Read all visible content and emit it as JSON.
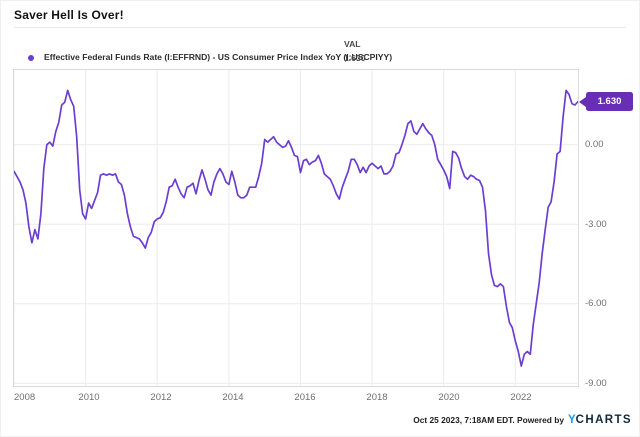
{
  "title": "Saver Hell Is Over!",
  "legend": {
    "series_label": "Effective Federal Funds Rate (I:EFFRND) - US Consumer Price Index YoY (I:USCPIYY)",
    "val_header": "VAL",
    "val": "1.630"
  },
  "badge": {
    "value": "1.630",
    "color": "#6a2db5"
  },
  "footer": {
    "timestamp": "Oct 25 2023, 7:18AM EDT. Powered by",
    "logo_y": "Y",
    "logo_rest": "CHARTS"
  },
  "colors": {
    "line": "#6b3ed2",
    "gridline": "#ebebeb",
    "plot_border": "#dcdcdc",
    "axis_text": "#6f6f6f",
    "logo_blue": "#199be9",
    "logo_dark": "#10293b"
  },
  "chart_data": {
    "type": "line",
    "title": "Saver Hell Is Over!",
    "series_name": "Effective Federal Funds Rate (I:EFFRND) - US Consumer Price Index YoY (I:USCPIYY)",
    "frequency": "monthly",
    "x_start_year": 2008,
    "x_start_month": 1,
    "x_end_year": 2023,
    "x_end_month": 10,
    "xlim": [
      2008.0,
      2023.75
    ],
    "ylim": [
      -9.1,
      2.82
    ],
    "x_ticks": [
      2008,
      2010,
      2012,
      2014,
      2016,
      2018,
      2020,
      2022
    ],
    "x_tick_labels": [
      "2008",
      "2010",
      "2012",
      "2014",
      "2016",
      "2018",
      "2020",
      "2022"
    ],
    "y_ticks": [
      0,
      -3,
      -6,
      -9
    ],
    "y_tick_labels": [
      "0.00",
      "-3.00",
      "-6.00",
      "-9.00"
    ],
    "grid": true,
    "legend_position": "top-left",
    "line_color": "#6b3ed2",
    "last_value": 1.63,
    "last_value_label": "1.630",
    "values": [
      -1.0,
      -1.2,
      -1.4,
      -1.7,
      -2.2,
      -3.1,
      -3.7,
      -3.2,
      -3.55,
      -2.6,
      -0.9,
      0.0,
      0.1,
      -0.05,
      0.5,
      0.85,
      1.5,
      1.6,
      2.05,
      1.7,
      1.45,
      0.3,
      -1.7,
      -2.6,
      -2.8,
      -2.2,
      -2.4,
      -2.1,
      -1.8,
      -1.15,
      -1.1,
      -1.15,
      -1.1,
      -1.15,
      -1.1,
      -1.4,
      -1.5,
      -1.9,
      -2.6,
      -3.1,
      -3.45,
      -3.5,
      -3.55,
      -3.7,
      -3.9,
      -3.5,
      -3.3,
      -2.9,
      -2.8,
      -2.75,
      -2.55,
      -2.15,
      -1.6,
      -1.55,
      -1.3,
      -1.6,
      -1.85,
      -2.0,
      -1.6,
      -1.55,
      -1.45,
      -1.85,
      -1.35,
      -0.95,
      -1.3,
      -1.7,
      -1.9,
      -1.4,
      -1.1,
      -0.9,
      -1.1,
      -1.4,
      -1.5,
      -1.0,
      -1.4,
      -1.9,
      -2.0,
      -2.0,
      -1.9,
      -1.6,
      -1.6,
      -1.6,
      -1.2,
      -0.7,
      0.2,
      0.1,
      0.2,
      0.3,
      0.1,
      0.0,
      -0.1,
      -0.05,
      0.15,
      -0.1,
      -0.4,
      -0.45,
      -1.05,
      -0.6,
      -0.55,
      -0.75,
      -0.65,
      -0.6,
      -0.4,
      -0.7,
      -1.1,
      -1.2,
      -1.3,
      -1.55,
      -1.85,
      -2.05,
      -1.6,
      -1.3,
      -1.0,
      -0.55,
      -0.55,
      -0.75,
      -1.05,
      -0.85,
      -1.05,
      -0.8,
      -0.7,
      -0.8,
      -0.9,
      -0.8,
      -1.1,
      -1.1,
      -1.0,
      -0.8,
      -0.35,
      -0.3,
      0.0,
      0.35,
      0.8,
      0.9,
      0.5,
      0.4,
      0.6,
      0.8,
      0.6,
      0.45,
      0.35,
      0.0,
      -0.55,
      -0.75,
      -0.95,
      -1.2,
      -1.65,
      -0.25,
      -0.3,
      -0.5,
      -0.9,
      -1.2,
      -1.3,
      -1.15,
      -1.2,
      -1.3,
      -1.35,
      -1.6,
      -2.5,
      -4.1,
      -4.9,
      -5.3,
      -5.35,
      -5.25,
      -5.35,
      -6.1,
      -6.7,
      -6.9,
      -7.4,
      -7.8,
      -8.35,
      -7.9,
      -7.8,
      -7.9,
      -6.8,
      -6.0,
      -5.2,
      -4.1,
      -3.2,
      -2.35,
      -2.15,
      -1.4,
      -0.35,
      -0.25,
      1.05,
      2.05,
      1.9,
      1.55,
      1.5,
      1.63
    ]
  }
}
